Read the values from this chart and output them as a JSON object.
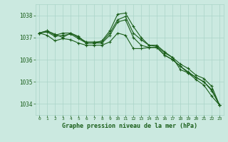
{
  "background_color": "#cbe9e0",
  "grid_color": "#aad4c8",
  "line_color": "#1a5e1a",
  "title": "Graphe pression niveau de la mer (hPa)",
  "xlim": [
    -0.5,
    23.5
  ],
  "ylim": [
    1033.5,
    1038.5
  ],
  "yticks": [
    1034,
    1035,
    1036,
    1037,
    1038
  ],
  "xticks": [
    0,
    1,
    2,
    3,
    4,
    5,
    6,
    7,
    8,
    9,
    10,
    11,
    12,
    13,
    14,
    15,
    16,
    17,
    18,
    19,
    20,
    21,
    22,
    23
  ],
  "series": [
    {
      "x": [
        0,
        1,
        2,
        3,
        4,
        5,
        6,
        7,
        8,
        9,
        10,
        11,
        12,
        13,
        14,
        15,
        16,
        17,
        18,
        19,
        20,
        21,
        22,
        23
      ],
      "y": [
        1037.2,
        1037.3,
        1037.1,
        1037.2,
        1037.2,
        1037.0,
        1036.8,
        1036.8,
        1036.8,
        1037.2,
        1037.8,
        1037.95,
        1037.2,
        1036.9,
        1036.65,
        1036.6,
        1036.3,
        1036.1,
        1035.8,
        1035.6,
        1035.3,
        1035.15,
        1034.8,
        1033.95
      ]
    },
    {
      "x": [
        0,
        1,
        2,
        3,
        4,
        5,
        6,
        7,
        8,
        9,
        10,
        11,
        12,
        13,
        14,
        15,
        16,
        17,
        18,
        19,
        20,
        21,
        22,
        23
      ],
      "y": [
        1037.2,
        1037.3,
        1037.15,
        1037.0,
        1037.2,
        1037.05,
        1036.75,
        1036.75,
        1036.85,
        1037.3,
        1038.05,
        1038.1,
        1037.5,
        1037.0,
        1036.65,
        1036.65,
        1036.35,
        1036.1,
        1035.55,
        1035.4,
        1035.1,
        1034.85,
        1034.35,
        1033.95
      ]
    },
    {
      "x": [
        0,
        1,
        2,
        3,
        4,
        5,
        6,
        7,
        8,
        9,
        10,
        11,
        12,
        13,
        14,
        15,
        16,
        17,
        18,
        19,
        20,
        21,
        22,
        23
      ],
      "y": [
        1037.2,
        1037.25,
        1037.05,
        1037.1,
        1037.15,
        1036.95,
        1036.75,
        1036.75,
        1036.75,
        1037.1,
        1037.7,
        1037.8,
        1037.0,
        1036.65,
        1036.55,
        1036.55,
        1036.2,
        1036.0,
        1035.7,
        1035.45,
        1035.2,
        1035.0,
        1034.65,
        1033.95
      ]
    },
    {
      "x": [
        0,
        1,
        2,
        3,
        4,
        5,
        6,
        7,
        8,
        9,
        10,
        11,
        12,
        13,
        14,
        15,
        16,
        17,
        18,
        19,
        20,
        21,
        22,
        23
      ],
      "y": [
        1037.2,
        1037.1,
        1036.85,
        1036.95,
        1036.9,
        1036.75,
        1036.65,
        1036.65,
        1036.65,
        1036.8,
        1037.2,
        1037.1,
        1036.5,
        1036.5,
        1036.55,
        1036.55,
        1036.2,
        1036.0,
        1035.7,
        1035.4,
        1035.2,
        1035.0,
        1034.6,
        1033.95
      ]
    }
  ]
}
